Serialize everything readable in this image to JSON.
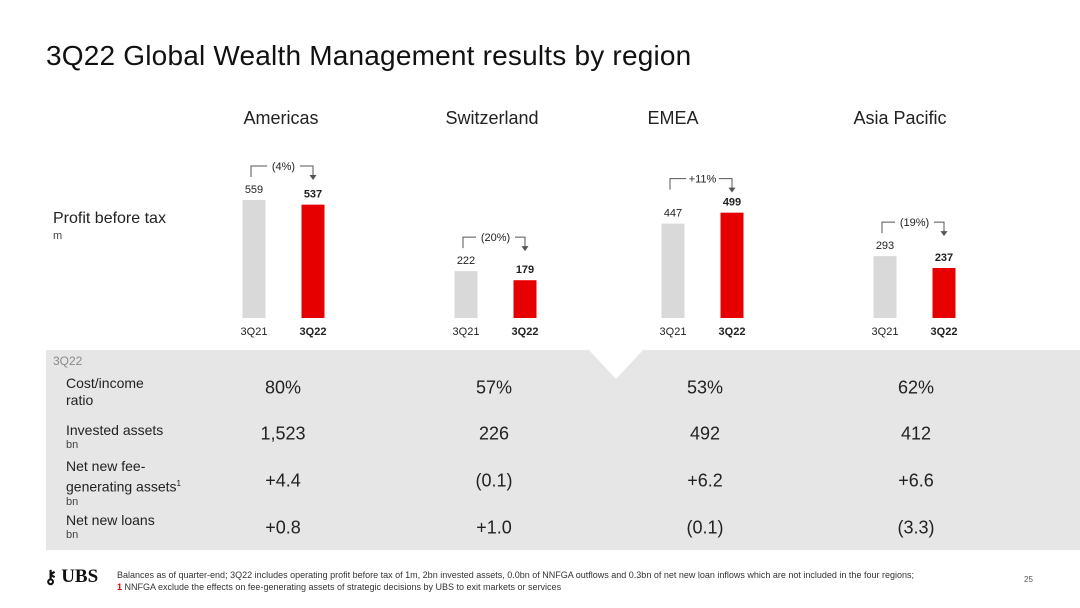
{
  "title": "3Q22 Global Wealth Management results by region",
  "profit_label": "Profit before tax",
  "profit_unit": "m",
  "colors": {
    "prior": "#d9d9d9",
    "current": "#e60000",
    "band": "#e6e6e6",
    "accent": "#e60000"
  },
  "chart_data": {
    "type": "bar",
    "ylabel": "Profit before tax",
    "unit": "m",
    "categories": [
      "3Q21",
      "3Q22"
    ],
    "groups": [
      {
        "region": "Americas",
        "values": [
          559,
          537
        ],
        "labels": [
          "559",
          "537"
        ],
        "change": "(4%)"
      },
      {
        "region": "Switzerland",
        "values": [
          222,
          179
        ],
        "labels": [
          "222",
          "179"
        ],
        "change": "(20%)"
      },
      {
        "region": "EMEA",
        "values": [
          447,
          499
        ],
        "labels": [
          "447",
          "499"
        ],
        "change": "+11%"
      },
      {
        "region": "Asia Pacific",
        "values": [
          293,
          237
        ],
        "labels": [
          "293",
          "237"
        ],
        "change": "(19%)"
      }
    ]
  },
  "table": {
    "period": "3Q22",
    "rows": [
      {
        "label": "Cost/income ratio",
        "unit": "",
        "values": [
          "80%",
          "57%",
          "53%",
          "62%"
        ]
      },
      {
        "label": "Invested assets",
        "unit": "bn",
        "values": [
          "1,523",
          "226",
          "492",
          "412"
        ]
      },
      {
        "label": "Net new fee-generating assets",
        "sup": "1",
        "unit": "bn",
        "values": [
          "+4.4",
          "(0.1)",
          "+6.2",
          "+6.6"
        ]
      },
      {
        "label": "Net new loans",
        "unit": "bn",
        "values": [
          "+0.8",
          "+1.0",
          "(0.1)",
          "(3.3)"
        ]
      }
    ]
  },
  "footer": {
    "logo": "UBS",
    "note1": "Balances as of quarter-end; 3Q22 includes operating profit before tax of 1m, 2bn invested assets, 0.0bn of NNFGA outflows and 0.3bn of net new loan inflows which are not included in the four regions;",
    "note2_num": "1",
    "note2": "NNFGA exclude the effects on fee-generating assets of strategic decisions by UBS to exit markets or services",
    "page": "25"
  }
}
